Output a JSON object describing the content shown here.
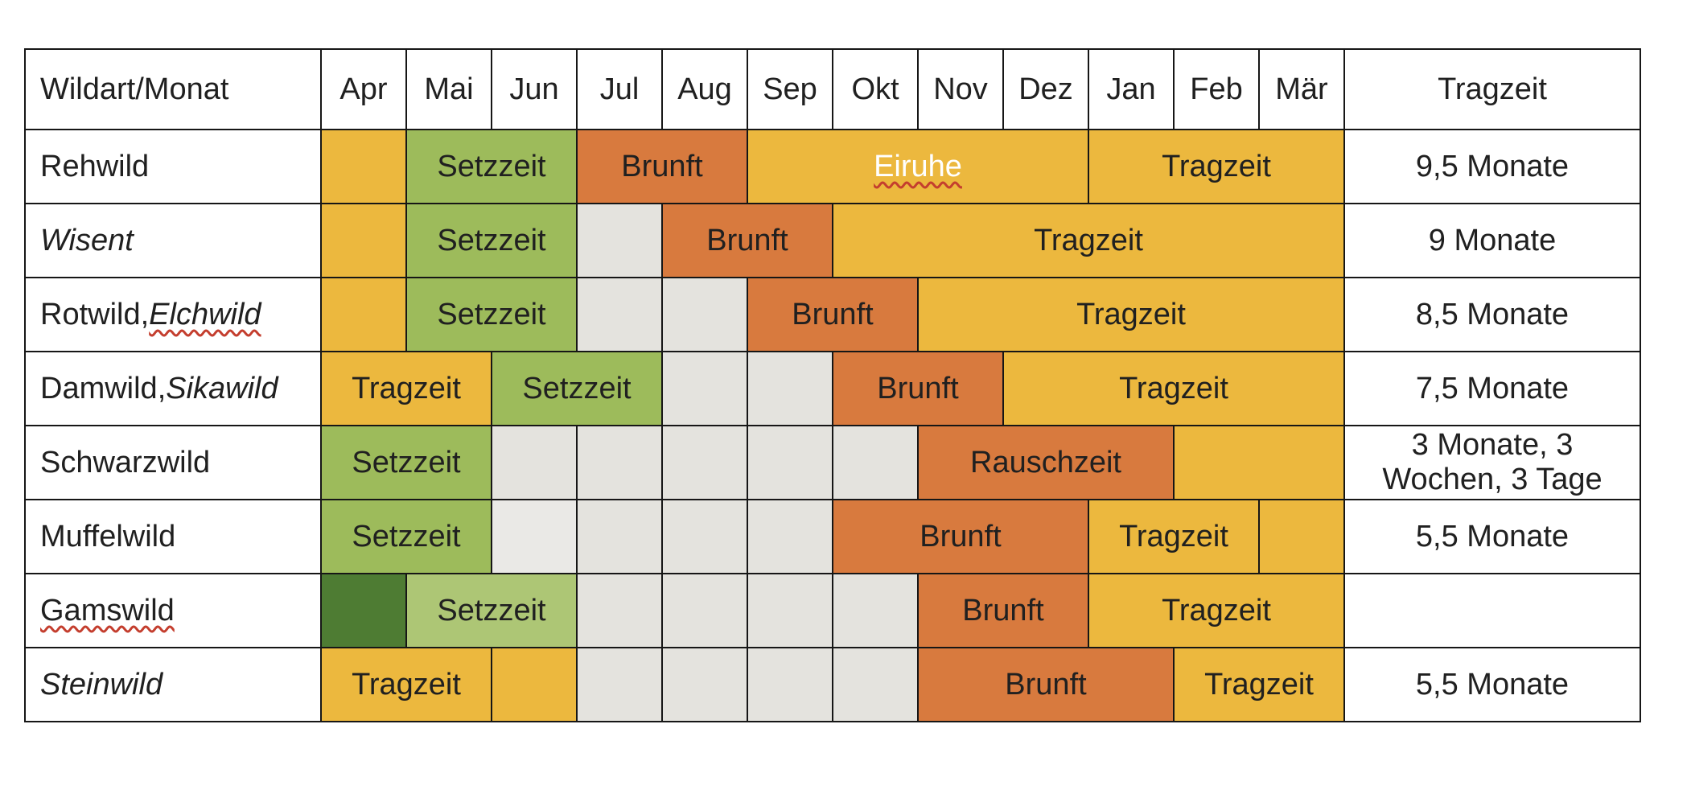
{
  "colors": {
    "yellow": "#ecb83e",
    "orange": "#d87a3e",
    "green": "#9dbb5b",
    "light_green": "#adc675",
    "dark_green": "#4e7c33",
    "gray": "#e4e3de",
    "light_gray": "#eae9e6",
    "border": "#161616",
    "text": "#202020",
    "white_text": "#ffffff",
    "squiggle_red": "#c43e2e",
    "background": "#ffffff"
  },
  "chart_data": {
    "type": "table",
    "columns": [
      "Wildart/Monat",
      "Apr",
      "Mai",
      "Jun",
      "Jul",
      "Aug",
      "Sep",
      "Okt",
      "Nov",
      "Dez",
      "Jan",
      "Feb",
      "Mär",
      "Tragzeit"
    ],
    "rows": [
      {
        "species": "Rehwild",
        "species_parts": [
          {
            "text": "Rehwild",
            "italic": false,
            "squiggle": false
          }
        ],
        "gestation": "9,5 Monate",
        "segments": [
          {
            "months": "Apr",
            "span": 1,
            "color": "yellow",
            "label": ""
          },
          {
            "months": "Mai–Jun",
            "span": 2,
            "color": "green",
            "label": "Setzzeit"
          },
          {
            "months": "Jul–Aug",
            "span": 2,
            "color": "orange",
            "label": "Brunft"
          },
          {
            "months": "Sep–Dez",
            "span": 4,
            "color": "yellow",
            "label": "Eiruhe",
            "white_text": true,
            "squiggle": true
          },
          {
            "months": "Jan–Mär",
            "span": 3,
            "color": "yellow",
            "label": "Tragzeit"
          }
        ]
      },
      {
        "species": "Wisent",
        "species_parts": [
          {
            "text": "Wisent",
            "italic": true,
            "squiggle": false
          }
        ],
        "gestation": "9 Monate",
        "segments": [
          {
            "months": "Apr",
            "span": 1,
            "color": "yellow",
            "label": ""
          },
          {
            "months": "Mai–Jun",
            "span": 2,
            "color": "green",
            "label": "Setzzeit"
          },
          {
            "months": "Jul",
            "span": 1,
            "color": "gray",
            "label": ""
          },
          {
            "months": "Aug–Sep",
            "span": 2,
            "color": "orange",
            "label": "Brunft"
          },
          {
            "months": "Okt–Mär",
            "span": 6,
            "color": "yellow",
            "label": "Tragzeit"
          }
        ]
      },
      {
        "species": "Rotwild, Elchwild",
        "species_parts": [
          {
            "text": "Rotwild, ",
            "italic": false,
            "squiggle": false
          },
          {
            "text": "Elchwild",
            "italic": true,
            "squiggle": true
          }
        ],
        "gestation": "8,5 Monate",
        "segments": [
          {
            "months": "Apr",
            "span": 1,
            "color": "yellow",
            "label": ""
          },
          {
            "months": "Mai–Jun",
            "span": 2,
            "color": "green",
            "label": "Setzzeit"
          },
          {
            "months": "Jul",
            "span": 1,
            "color": "gray",
            "label": ""
          },
          {
            "months": "Aug",
            "span": 1,
            "color": "gray",
            "label": ""
          },
          {
            "months": "Sep–Okt",
            "span": 2,
            "color": "orange",
            "label": "Brunft"
          },
          {
            "months": "Nov–Mär",
            "span": 5,
            "color": "yellow",
            "label": "Tragzeit"
          }
        ]
      },
      {
        "species": "Damwild, Sikawild",
        "species_parts": [
          {
            "text": "Damwild, ",
            "italic": false,
            "squiggle": false
          },
          {
            "text": "Sikawild",
            "italic": true,
            "squiggle": false
          }
        ],
        "gestation": "7,5 Monate",
        "segments": [
          {
            "months": "Apr–Mai",
            "span": 2,
            "color": "yellow",
            "label": "Tragzeit"
          },
          {
            "months": "Jun–Jul",
            "span": 2,
            "color": "green",
            "label": "Setzzeit"
          },
          {
            "months": "Aug",
            "span": 1,
            "color": "gray",
            "label": ""
          },
          {
            "months": "Sep",
            "span": 1,
            "color": "gray",
            "label": ""
          },
          {
            "months": "Okt–Nov",
            "span": 2,
            "color": "orange",
            "label": "Brunft"
          },
          {
            "months": "Dez–Mär",
            "span": 4,
            "color": "yellow",
            "label": "Tragzeit"
          }
        ]
      },
      {
        "species": "Schwarzwild",
        "species_parts": [
          {
            "text": "Schwarzwild",
            "italic": false,
            "squiggle": false
          }
        ],
        "gestation": "3 Monate, 3 Wochen, 3 Tage",
        "segments": [
          {
            "months": "Apr–Mai",
            "span": 2,
            "color": "green",
            "label": "Setzzeit"
          },
          {
            "months": "Jun",
            "span": 1,
            "color": "gray",
            "label": ""
          },
          {
            "months": "Jul",
            "span": 1,
            "color": "gray",
            "label": ""
          },
          {
            "months": "Aug",
            "span": 1,
            "color": "gray",
            "label": ""
          },
          {
            "months": "Sep",
            "span": 1,
            "color": "gray",
            "label": ""
          },
          {
            "months": "Okt",
            "span": 1,
            "color": "gray",
            "label": ""
          },
          {
            "months": "Nov–Jan",
            "span": 3,
            "color": "orange",
            "label": "Rauschzeit"
          },
          {
            "months": "Feb–Mär",
            "span": 2,
            "color": "yellow",
            "label": ""
          }
        ]
      },
      {
        "species": "Muffelwild",
        "species_parts": [
          {
            "text": "Muffelwild",
            "italic": false,
            "squiggle": false
          }
        ],
        "gestation": "5,5 Monate",
        "segments": [
          {
            "months": "Apr–Mai",
            "span": 2,
            "color": "green",
            "label": "Setzzeit"
          },
          {
            "months": "Jun",
            "span": 1,
            "color": "light_gray",
            "label": ""
          },
          {
            "months": "Jul",
            "span": 1,
            "color": "gray",
            "label": ""
          },
          {
            "months": "Aug",
            "span": 1,
            "color": "gray",
            "label": ""
          },
          {
            "months": "Sep",
            "span": 1,
            "color": "gray",
            "label": ""
          },
          {
            "months": "Okt–Dez",
            "span": 3,
            "color": "orange",
            "label": "Brunft"
          },
          {
            "months": "Jan–Feb",
            "span": 2,
            "color": "yellow",
            "label": "Tragzeit"
          },
          {
            "months": "Mär",
            "span": 1,
            "color": "yellow",
            "label": ""
          }
        ]
      },
      {
        "species": "Gamswild",
        "species_parts": [
          {
            "text": "Gamswild",
            "italic": false,
            "squiggle": true
          }
        ],
        "gestation": "",
        "segments": [
          {
            "months": "Apr",
            "span": 1,
            "color": "dark_green",
            "label": ""
          },
          {
            "months": "Mai–Jun",
            "span": 2,
            "color": "light_green",
            "label": "Setzzeit"
          },
          {
            "months": "Jul",
            "span": 1,
            "color": "gray",
            "label": ""
          },
          {
            "months": "Aug",
            "span": 1,
            "color": "gray",
            "label": ""
          },
          {
            "months": "Sep",
            "span": 1,
            "color": "gray",
            "label": ""
          },
          {
            "months": "Okt",
            "span": 1,
            "color": "gray",
            "label": ""
          },
          {
            "months": "Nov–Dez",
            "span": 2,
            "color": "orange",
            "label": "Brunft"
          },
          {
            "months": "Jan–Mär",
            "span": 3,
            "color": "yellow",
            "label": "Tragzeit"
          }
        ]
      },
      {
        "species": "Steinwild",
        "species_parts": [
          {
            "text": "Steinwild",
            "italic": true,
            "squiggle": false
          }
        ],
        "gestation": "5,5 Monate",
        "segments": [
          {
            "months": "Apr–Mai",
            "span": 2,
            "color": "yellow",
            "label": "Tragzeit"
          },
          {
            "months": "Jun",
            "span": 1,
            "color": "yellow",
            "label": ""
          },
          {
            "months": "Jul",
            "span": 1,
            "color": "gray",
            "label": ""
          },
          {
            "months": "Aug",
            "span": 1,
            "color": "gray",
            "label": ""
          },
          {
            "months": "Sep",
            "span": 1,
            "color": "gray",
            "label": ""
          },
          {
            "months": "Okt",
            "span": 1,
            "color": "gray",
            "label": ""
          },
          {
            "months": "Nov–Jan",
            "span": 3,
            "color": "orange",
            "label": "Brunft"
          },
          {
            "months": "Feb–Mär",
            "span": 2,
            "color": "yellow",
            "label": "Tragzeit"
          }
        ]
      }
    ]
  }
}
